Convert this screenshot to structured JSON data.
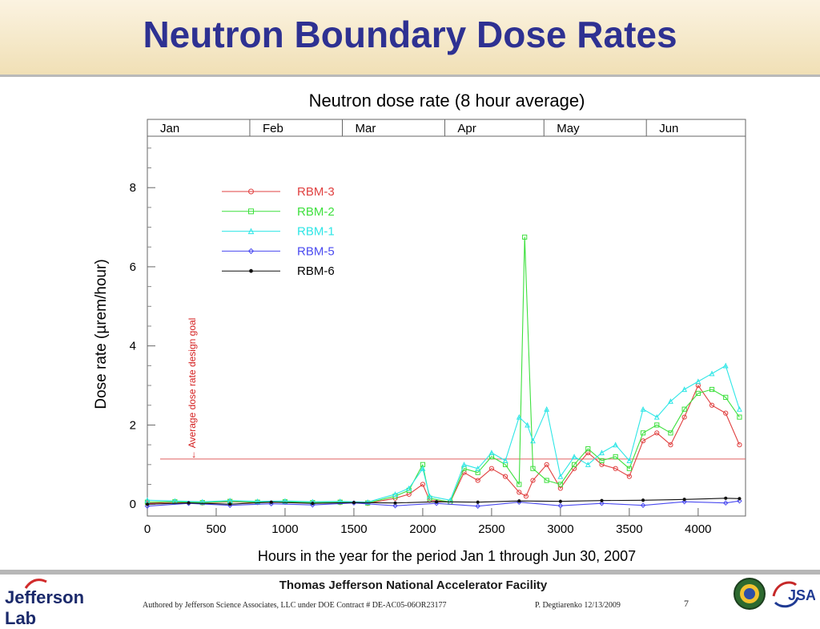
{
  "slide": {
    "title": "Neutron Boundary Dose Rates"
  },
  "footer": {
    "logo_text": "Jefferson Lab",
    "facility": "Thomas Jefferson National Accelerator Facility",
    "authored": "Authored by Jefferson Science Associates, LLC under DOE Contract #  DE-AC05-06OR23177",
    "byline": "P. Degtiarenko 12/13/2009",
    "page_number": "7",
    "logos": [
      "doe-seal-icon",
      "jsa-logo-icon"
    ]
  },
  "colors": {
    "title": "#2e3192",
    "RBM-3": "#e04040",
    "RBM-2": "#3ee03e",
    "RBM-1": "#2ee6e6",
    "RBM-5": "#4a4af0",
    "RBM-6": "#111111",
    "design_goal_line": "#e06060"
  },
  "chart_data": {
    "type": "line",
    "title": "Neutron dose rate (8 hour average)",
    "xlabel": "Hours in the year for the period Jan 1  through  Jun 30, 2007",
    "ylabel": "Dose rate (µrem/hour)",
    "xlim": [
      0,
      4344
    ],
    "ylim": [
      -0.3,
      9.3
    ],
    "x_ticks": [
      0,
      500,
      1000,
      1500,
      2000,
      2500,
      3000,
      3500,
      4000
    ],
    "y_ticks": [
      0,
      2,
      4,
      6,
      8
    ],
    "month_bands": [
      {
        "label": "Jan",
        "start": 0,
        "end": 744
      },
      {
        "label": "Feb",
        "start": 744,
        "end": 1416
      },
      {
        "label": "Mar",
        "start": 1416,
        "end": 2160
      },
      {
        "label": "Apr",
        "start": 2160,
        "end": 2880
      },
      {
        "label": "May",
        "start": 2880,
        "end": 3624
      },
      {
        "label": "Jun",
        "start": 3624,
        "end": 4344
      }
    ],
    "legend_position": "top-left",
    "grid": false,
    "reference_line": {
      "y": 1.14,
      "label": "← Average dose rate design goal"
    },
    "series": [
      {
        "name": "RBM-3",
        "marker": "circle",
        "x": [
          0,
          200,
          400,
          600,
          800,
          1000,
          1200,
          1400,
          1600,
          1800,
          1900,
          2000,
          2050,
          2200,
          2300,
          2400,
          2500,
          2600,
          2700,
          2750,
          2800,
          2900,
          3000,
          3100,
          3200,
          3300,
          3400,
          3500,
          3600,
          3700,
          3800,
          3900,
          4000,
          4100,
          4200,
          4300
        ],
        "y": [
          0.02,
          0.05,
          0.03,
          0.06,
          0.04,
          0.05,
          0.03,
          0.04,
          0.02,
          0.15,
          0.25,
          0.5,
          0.1,
          0.05,
          0.8,
          0.6,
          0.9,
          0.7,
          0.3,
          0.2,
          0.6,
          1.0,
          0.4,
          0.9,
          1.3,
          1.0,
          0.9,
          0.7,
          1.6,
          1.8,
          1.5,
          2.2,
          3.0,
          2.5,
          2.3,
          1.5
        ]
      },
      {
        "name": "RBM-2",
        "marker": "square",
        "x": [
          0,
          200,
          400,
          600,
          800,
          1000,
          1200,
          1400,
          1600,
          1800,
          1900,
          2000,
          2050,
          2200,
          2300,
          2400,
          2500,
          2600,
          2700,
          2740,
          2800,
          2900,
          3000,
          3100,
          3200,
          3300,
          3400,
          3500,
          3600,
          3700,
          3800,
          3900,
          4000,
          4100,
          4200,
          4300
        ],
        "y": [
          0.05,
          0.06,
          0.04,
          0.07,
          0.05,
          0.06,
          0.04,
          0.05,
          0.03,
          0.2,
          0.35,
          1.0,
          0.15,
          0.05,
          0.9,
          0.8,
          1.2,
          1.0,
          0.5,
          6.75,
          0.9,
          0.6,
          0.5,
          1.0,
          1.4,
          1.1,
          1.2,
          0.9,
          1.8,
          2.0,
          1.8,
          2.4,
          2.8,
          2.9,
          2.7,
          2.2
        ]
      },
      {
        "name": "RBM-1",
        "marker": "triangle",
        "x": [
          0,
          200,
          400,
          600,
          800,
          1000,
          1200,
          1400,
          1600,
          1800,
          1900,
          2000,
          2050,
          2200,
          2300,
          2400,
          2500,
          2600,
          2700,
          2760,
          2800,
          2900,
          3000,
          3100,
          3200,
          3300,
          3400,
          3500,
          3600,
          3700,
          3800,
          3900,
          4000,
          4100,
          4200,
          4300
        ],
        "y": [
          0.1,
          0.08,
          0.06,
          0.09,
          0.07,
          0.08,
          0.06,
          0.07,
          0.05,
          0.25,
          0.4,
          0.9,
          0.2,
          0.1,
          1.0,
          0.9,
          1.3,
          1.1,
          2.2,
          2.0,
          1.6,
          2.4,
          0.7,
          1.2,
          1.0,
          1.3,
          1.5,
          1.1,
          2.4,
          2.2,
          2.6,
          2.9,
          3.1,
          3.3,
          3.5,
          2.4
        ]
      },
      {
        "name": "RBM-5",
        "marker": "diamond",
        "x": [
          0,
          300,
          600,
          900,
          1200,
          1500,
          1800,
          2100,
          2400,
          2700,
          3000,
          3300,
          3600,
          3900,
          4200,
          4300
        ],
        "y": [
          -0.05,
          0.02,
          -0.03,
          0.01,
          -0.02,
          0.03,
          -0.04,
          0.02,
          -0.05,
          0.05,
          -0.04,
          0.02,
          -0.03,
          0.06,
          0.03,
          0.08
        ]
      },
      {
        "name": "RBM-6",
        "marker": "star",
        "x": [
          0,
          300,
          600,
          900,
          1200,
          1500,
          1800,
          2100,
          2400,
          2700,
          3000,
          3300,
          3600,
          3900,
          4200,
          4300
        ],
        "y": [
          0.0,
          0.03,
          0.0,
          0.05,
          0.02,
          0.04,
          0.03,
          0.06,
          0.05,
          0.08,
          0.07,
          0.09,
          0.1,
          0.12,
          0.15,
          0.14
        ]
      }
    ]
  }
}
